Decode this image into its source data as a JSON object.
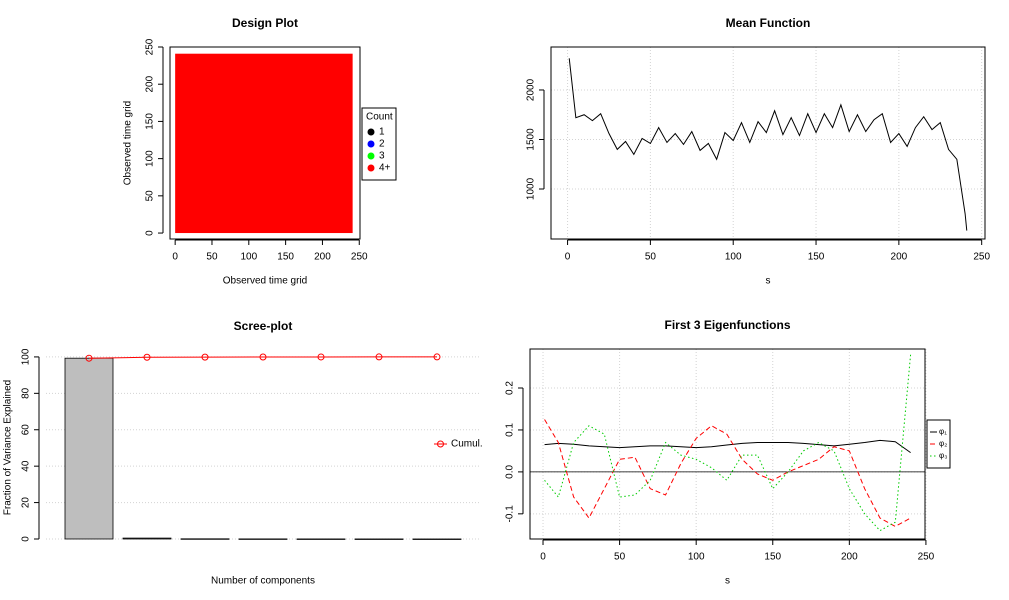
{
  "chart_data": [
    {
      "type": "design",
      "title": "Design Plot",
      "xlabel": "Observed time grid",
      "ylabel": "Observed time grid",
      "x": [
        0,
        241
      ],
      "y": [
        0,
        241
      ],
      "color": "#ff0000",
      "xlim": [
        -7,
        251
      ],
      "ylim": [
        -8,
        250
      ],
      "xticks": [
        0,
        50,
        100,
        150,
        200,
        250
      ],
      "yticks": [
        0,
        50,
        100,
        150,
        200,
        250
      ],
      "legend_title": "Count",
      "legend": [
        {
          "name": "1",
          "color": "#000000"
        },
        {
          "name": "2",
          "color": "#0000ff"
        },
        {
          "name": "3",
          "color": "#00ff00"
        },
        {
          "name": "4+",
          "color": "#ff0000"
        }
      ]
    },
    {
      "type": "line",
      "title": "Mean Function",
      "xlabel": "s",
      "x": [
        1,
        5,
        10,
        15,
        20,
        25,
        30,
        35,
        40,
        45,
        50,
        55,
        60,
        65,
        70,
        75,
        80,
        85,
        90,
        95,
        100,
        105,
        110,
        115,
        120,
        125,
        130,
        135,
        140,
        145,
        150,
        155,
        160,
        165,
        170,
        175,
        180,
        185,
        190,
        195,
        200,
        205,
        210,
        215,
        220,
        225,
        230,
        235,
        240,
        241
      ],
      "values": [
        2320,
        1720,
        1750,
        1690,
        1760,
        1560,
        1400,
        1480,
        1350,
        1510,
        1460,
        1620,
        1470,
        1560,
        1450,
        1580,
        1390,
        1460,
        1300,
        1570,
        1490,
        1670,
        1470,
        1680,
        1570,
        1790,
        1550,
        1720,
        1540,
        1760,
        1570,
        1760,
        1620,
        1850,
        1580,
        1750,
        1580,
        1700,
        1760,
        1470,
        1560,
        1430,
        1620,
        1730,
        1600,
        1670,
        1400,
        1300,
        750,
        580
      ],
      "color": "#000000",
      "xlim": [
        -10,
        252
      ],
      "ylim": [
        495,
        2434
      ],
      "xticks": [
        0,
        50,
        100,
        150,
        200,
        250
      ],
      "yticks": [
        1000,
        1500,
        2000
      ],
      "grid": true
    },
    {
      "type": "scree",
      "title": "Scree-plot",
      "xlabel": "Number of components",
      "ylabel": "Fraction of Variance Explained",
      "categories": [
        null,
        null,
        null,
        null,
        null,
        null,
        null
      ],
      "values": [
        99.3,
        0.5,
        0.1,
        0.05,
        0.03,
        0.02,
        0.01
      ],
      "color": "#bebebe",
      "series": [
        {
          "name": "Cumul.",
          "color": "#ff0000",
          "values": [
            99.3,
            99.8,
            99.9,
            99.95,
            99.98,
            100,
            100
          ]
        }
      ],
      "ylim": [
        -3.3,
        103.8
      ],
      "yticks": [
        0,
        20,
        40,
        60,
        80,
        100
      ],
      "grid": true
    },
    {
      "type": "lines",
      "title": "First 3 Eigenfunctions",
      "xlabel": "s",
      "x": [
        1,
        10,
        20,
        30,
        40,
        50,
        60,
        70,
        80,
        90,
        100,
        110,
        120,
        130,
        140,
        150,
        160,
        170,
        180,
        190,
        200,
        210,
        220,
        230,
        240
      ],
      "series": [
        {
          "name": "φ₁",
          "color": "#000000",
          "line_style": "solid",
          "values": [
            0.065,
            0.068,
            0.066,
            0.062,
            0.06,
            0.058,
            0.06,
            0.062,
            0.062,
            0.06,
            0.058,
            0.06,
            0.064,
            0.068,
            0.07,
            0.07,
            0.07,
            0.068,
            0.065,
            0.062,
            0.066,
            0.07,
            0.075,
            0.072,
            0.046
          ]
        },
        {
          "name": "φ₂",
          "color": "#ff0000",
          "line_style": "dashed",
          "values": [
            0.125,
            0.07,
            -0.06,
            -0.11,
            -0.04,
            0.03,
            0.035,
            -0.04,
            -0.055,
            0.02,
            0.08,
            0.11,
            0.09,
            0.03,
            -0.005,
            -0.02,
            0.0,
            0.015,
            0.03,
            0.06,
            0.05,
            -0.04,
            -0.11,
            -0.13,
            -0.11
          ]
        },
        {
          "name": "φ₃",
          "color": "#00cc00",
          "line_style": "dotted",
          "values": [
            -0.02,
            -0.06,
            0.07,
            0.11,
            0.09,
            -0.06,
            -0.055,
            -0.02,
            0.07,
            0.04,
            0.03,
            0.01,
            -0.02,
            0.04,
            0.04,
            -0.04,
            0.0,
            0.05,
            0.07,
            0.05,
            -0.04,
            -0.1,
            -0.14,
            -0.12,
            0.28
          ]
        }
      ],
      "xlim": [
        -8.5,
        249.4
      ],
      "ylim": [
        -0.16,
        0.293
      ],
      "xticks": [
        0,
        50,
        100,
        150,
        200,
        250
      ],
      "yticks": [
        {
          "value": -0.1,
          "label": "-0.1"
        },
        {
          "value": 0,
          "label": "0.0"
        },
        {
          "value": 0.1,
          "label": "0.1"
        },
        {
          "value": 0.2,
          "label": "0.2"
        }
      ],
      "grid": true
    }
  ]
}
